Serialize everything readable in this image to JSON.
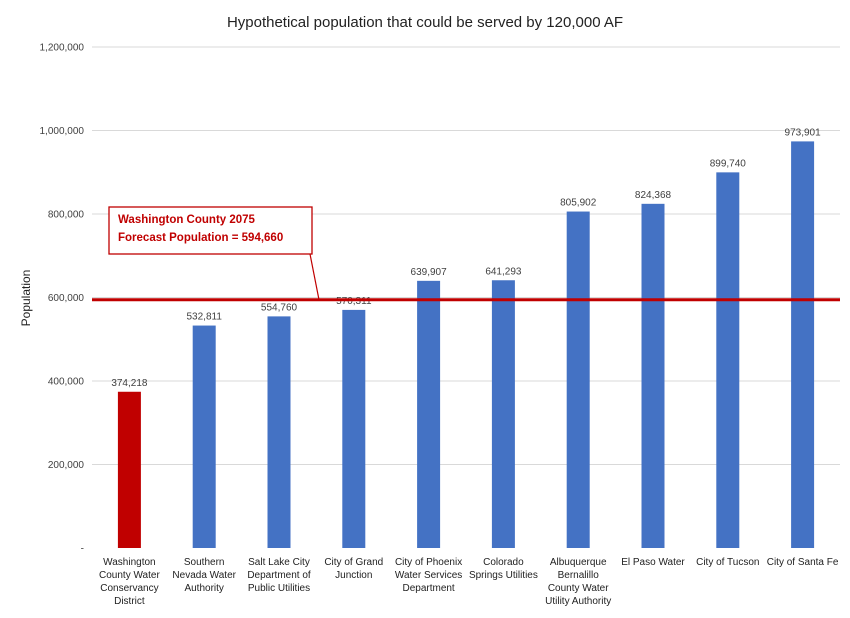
{
  "chart_data": {
    "type": "bar",
    "title": "Hypothetical population that could be served by 120,000 AF",
    "ylabel": "Population",
    "ylim": [
      0,
      1200000
    ],
    "yticks": [
      0,
      200000,
      400000,
      600000,
      800000,
      1000000,
      1200000
    ],
    "ytick_labels": [
      "-",
      "200,000",
      "400,000",
      "600,000",
      "800,000",
      "1,000,000",
      "1,200,000"
    ],
    "grid": true,
    "categories": [
      [
        "Washington",
        "County Water",
        "Conservancy",
        "District"
      ],
      [
        "Southern",
        "Nevada Water",
        "Authority"
      ],
      [
        "Salt Lake City",
        "Department of",
        "Public Utilities"
      ],
      [
        "City of Grand",
        "Junction"
      ],
      [
        "City of Phoenix",
        "Water Services",
        "Department"
      ],
      [
        "Colorado",
        "Springs Utilities"
      ],
      [
        "Albuquerque",
        "Bernalillo",
        "County Water",
        "Utility Authority"
      ],
      [
        "El Paso Water"
      ],
      [
        "City of Tucson"
      ],
      [
        "City of Santa Fe"
      ]
    ],
    "values": [
      374218,
      532811,
      554760,
      570311,
      639907,
      641293,
      805902,
      824368,
      899740,
      973901
    ],
    "data_labels": [
      "374,218",
      "532,811",
      "554,760",
      "570,311",
      "639,907",
      "641,293",
      "805,902",
      "824,368",
      "899,740",
      "973,901"
    ],
    "bar_colors": [
      "#c00000",
      "#4472c4",
      "#4472c4",
      "#4472c4",
      "#4472c4",
      "#4472c4",
      "#4472c4",
      "#4472c4",
      "#4472c4",
      "#4472c4"
    ],
    "reference_line": {
      "value": 594660,
      "color": "#c00000",
      "annotation": [
        "Washington County 2075",
        "Forecast Population = 594,660"
      ]
    }
  }
}
